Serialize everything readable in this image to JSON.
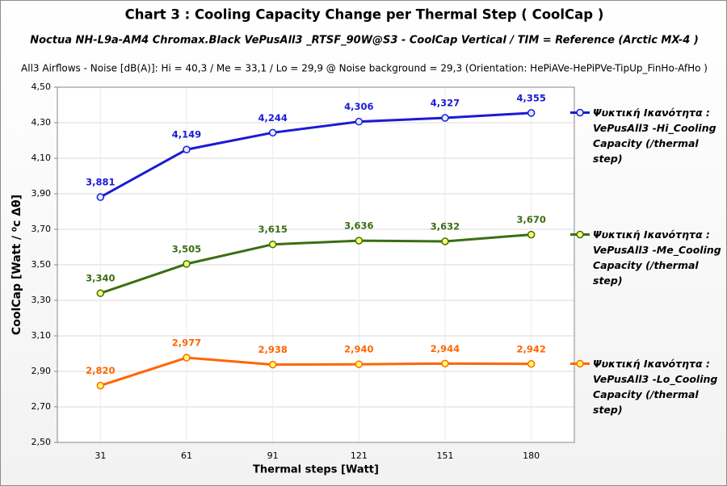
{
  "chart_data": {
    "type": "line",
    "title": "Chart 3 :  Cooling Capacity Change per Thermal Step ( CoolCap )",
    "subtitle": "Noctua NH-L9a-AM4 Chromax.Black  VePusAll3 _RTSF_90W@S3  -  CoolCap Vertical   /  TIM = Reference   (Arctic MX-4 )",
    "note": "All3 Airflows  -  Noise [dB(A)]: Hi = 40,3  / Me = 33,1  / Lo = 29,9 @ Noise background = 29,3     (Orientation: HePiAVe-HePiPVe-TipUp_FinHo-AfHo )",
    "x_label": "Thermal steps  [Watt]",
    "y_label": "CoolCap   [Watt / ⁰c Δθ]",
    "categories": [
      "31",
      "61",
      "91",
      "121",
      "151",
      "180"
    ],
    "ylim": [
      2.5,
      4.5
    ],
    "yticks": [
      {
        "value": 2.5,
        "label": "2,50"
      },
      {
        "value": 2.7,
        "label": "2,70"
      },
      {
        "value": 2.9,
        "label": "2,90"
      },
      {
        "value": 3.1,
        "label": "3,10"
      },
      {
        "value": 3.3,
        "label": "3,30"
      },
      {
        "value": 3.5,
        "label": "3,50"
      },
      {
        "value": 3.7,
        "label": "3,70"
      },
      {
        "value": 3.9,
        "label": "3,90"
      },
      {
        "value": 4.1,
        "label": "4,10"
      },
      {
        "value": 4.3,
        "label": "4,30"
      },
      {
        "value": 4.5,
        "label": "4,50"
      }
    ],
    "grid": true,
    "legend": "right",
    "series": [
      {
        "name": "Ψυκτική Ικανότητα : VePusAll3 -Hi_Cooling Capacity (/thermal step)",
        "color": "#1a1ad6",
        "marker_fill": "#ddeeff",
        "values": [
          3.881,
          4.149,
          4.244,
          4.306,
          4.327,
          4.355
        ],
        "value_labels": [
          "3,881",
          "4,149",
          "4,244",
          "4,306",
          "4,327",
          "4,355"
        ]
      },
      {
        "name": "Ψυκτική Ικανότητα : VePusAll3 -Me_Cooling Capacity (/thermal step)",
        "color": "#3a6e14",
        "marker_fill": "#ffff66",
        "values": [
          3.34,
          3.505,
          3.615,
          3.636,
          3.632,
          3.67
        ],
        "value_labels": [
          "3,340",
          "3,505",
          "3,615",
          "3,636",
          "3,632",
          "3,670"
        ]
      },
      {
        "name": "Ψυκτική Ικανότητα : VePusAll3 -Lo_Cooling Capacity (/thermal step)",
        "color": "#ff6600",
        "marker_fill": "#ffff66",
        "values": [
          2.82,
          2.977,
          2.938,
          2.94,
          2.944,
          2.942
        ],
        "value_labels": [
          "2,820",
          "2,977",
          "2,938",
          "2,940",
          "2,944",
          "2,942"
        ]
      }
    ]
  }
}
